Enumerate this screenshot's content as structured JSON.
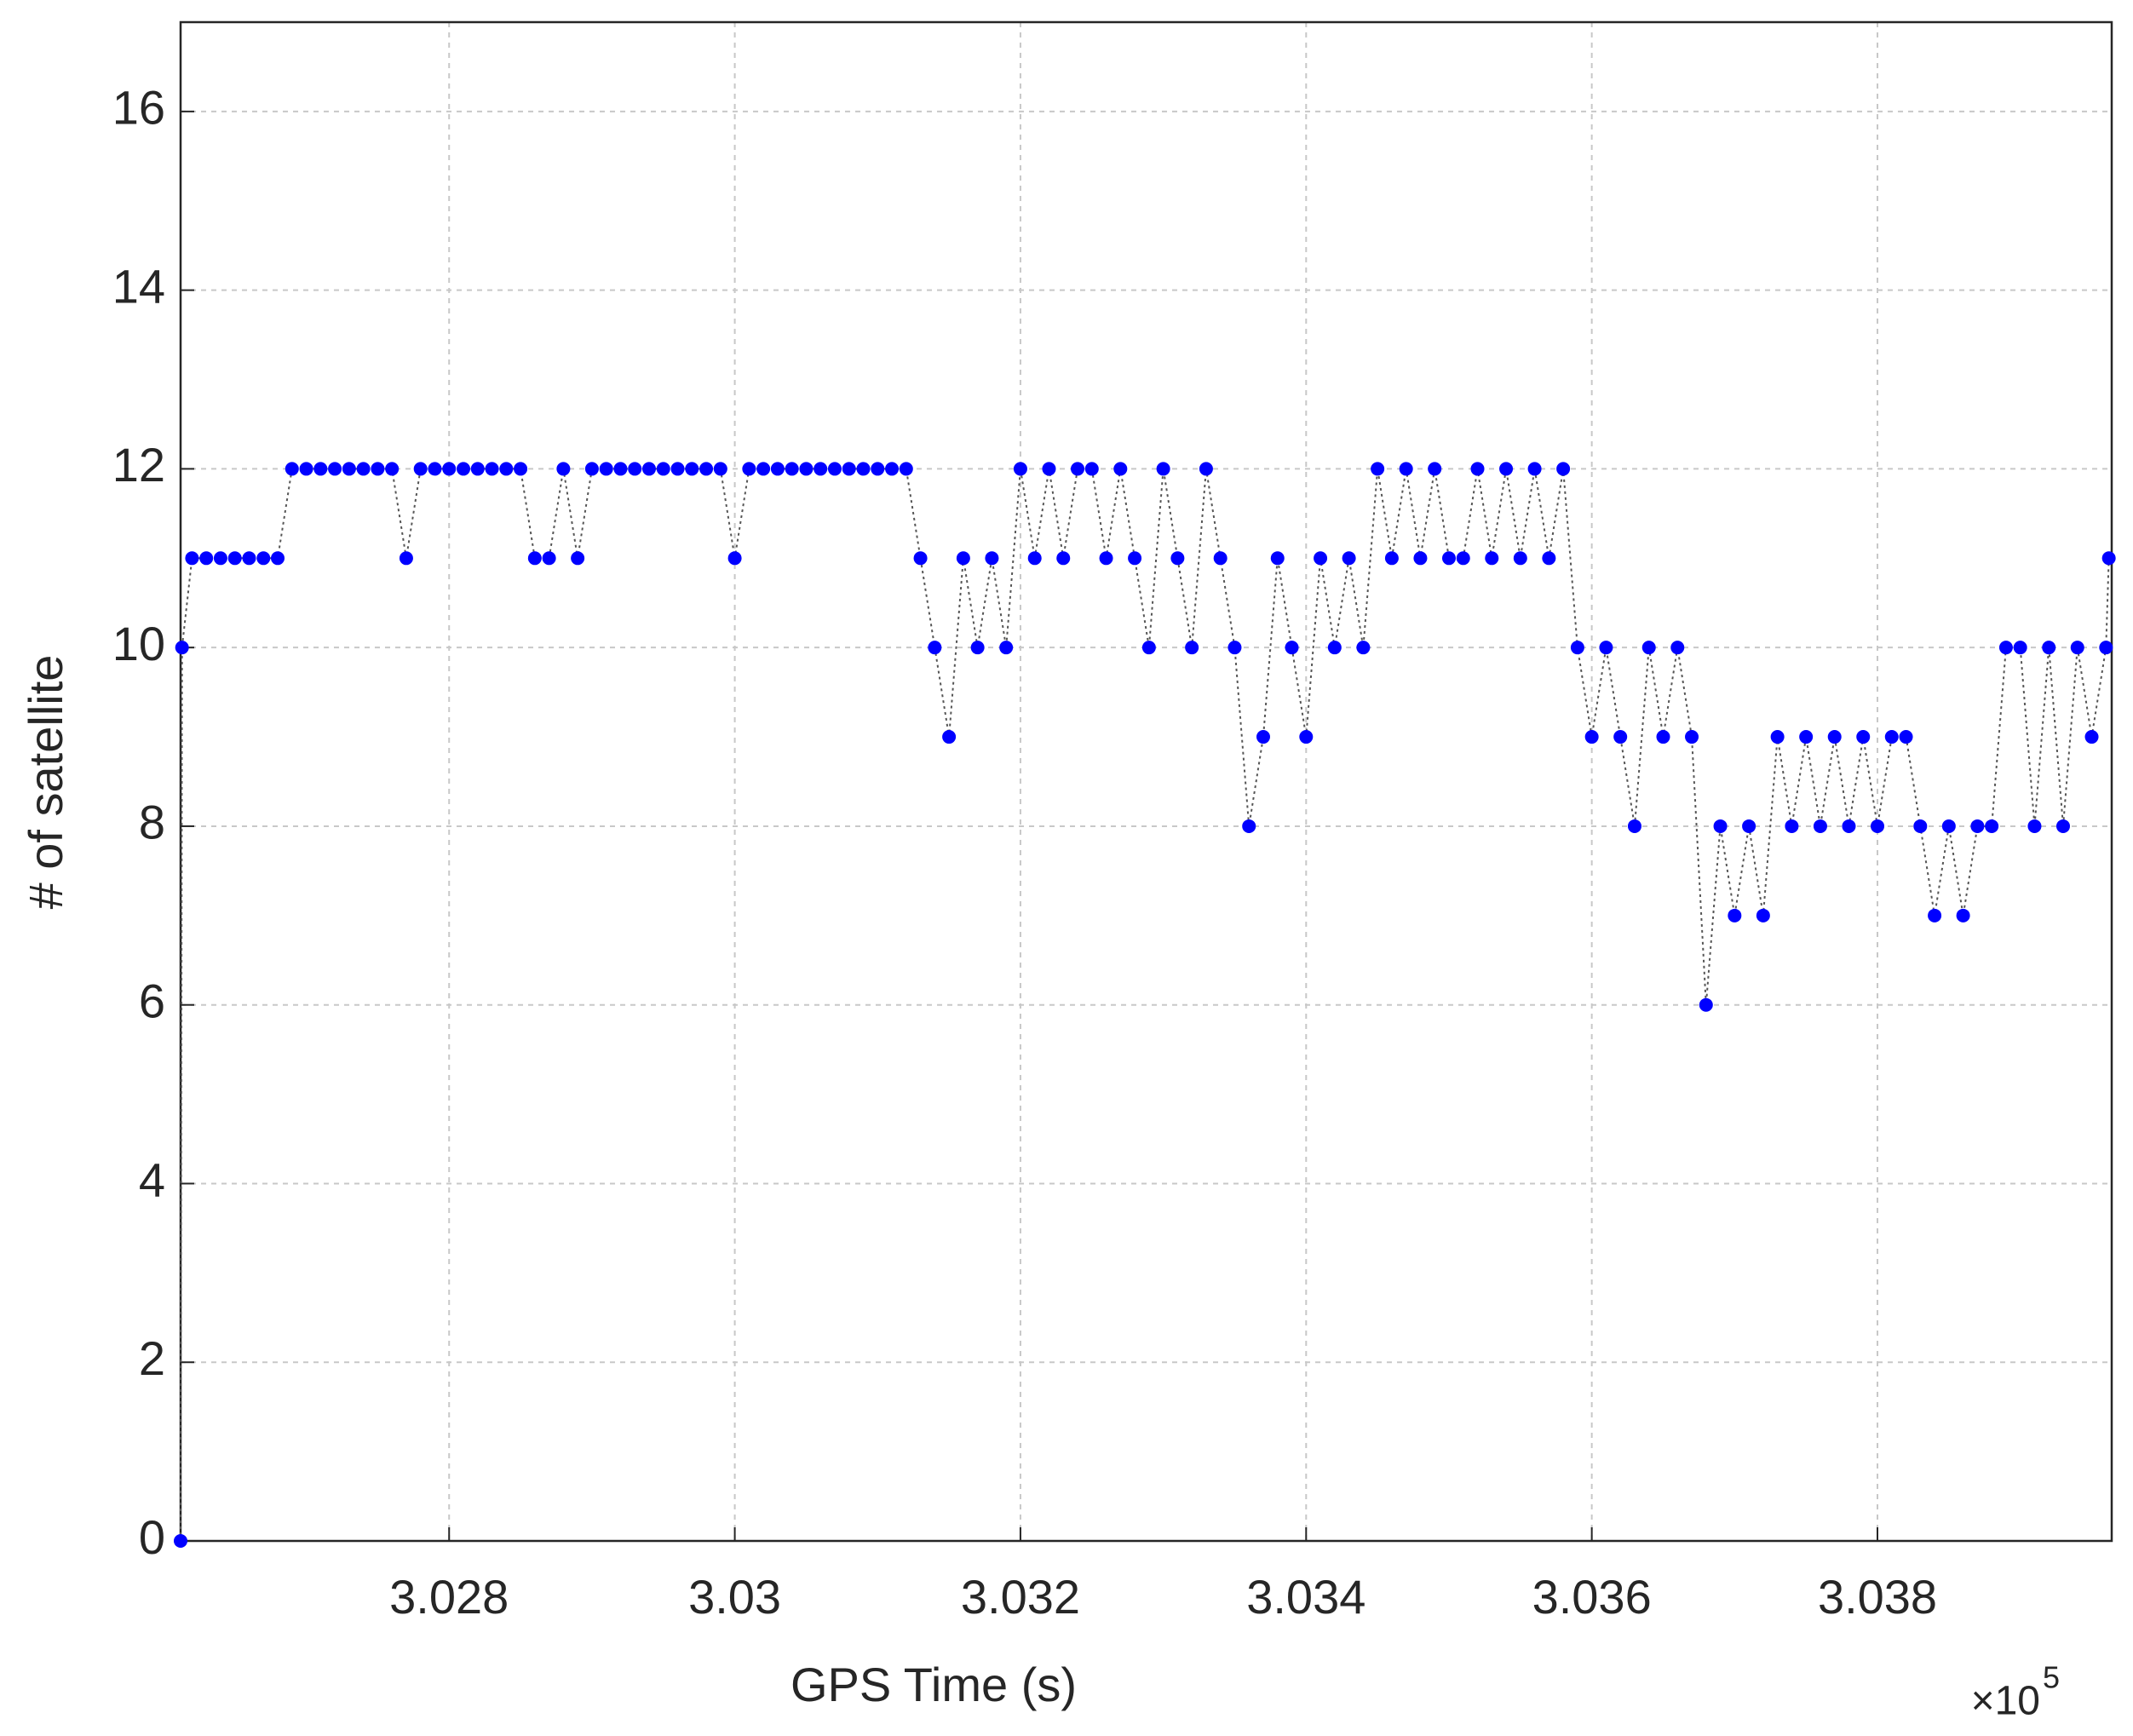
{
  "chart_data": {
    "type": "line",
    "xlabel": "GPS Time (s)",
    "ylabel": "# of satellite",
    "x_multiplier": {
      "base": "×10",
      "exponent": "5"
    },
    "xlim": [
      3.02612,
      3.03964
    ],
    "xticks": [
      3.028,
      3.03,
      3.032,
      3.034,
      3.036,
      3.038
    ],
    "ylim": [
      0,
      17
    ],
    "yticks": [
      0,
      2,
      4,
      6,
      8,
      10,
      12,
      14,
      16
    ],
    "grid": true,
    "x": [
      3.02612,
      3.02613,
      3.0262,
      3.0263,
      3.0264,
      3.0265,
      3.0266,
      3.0267,
      3.0268,
      3.0269,
      3.027,
      3.0271,
      3.0272,
      3.0273,
      3.0274,
      3.0275,
      3.0276,
      3.0277,
      3.0278,
      3.0279,
      3.028,
      3.0281,
      3.0282,
      3.0283,
      3.0284,
      3.0285,
      3.0286,
      3.0287,
      3.0288,
      3.0289,
      3.029,
      3.0291,
      3.0292,
      3.0293,
      3.0294,
      3.0295,
      3.0296,
      3.0297,
      3.0298,
      3.0299,
      3.03,
      3.0301,
      3.0302,
      3.0303,
      3.0304,
      3.0305,
      3.0306,
      3.0307,
      3.0308,
      3.0309,
      3.031,
      3.0311,
      3.0312,
      3.0313,
      3.0314,
      3.0315,
      3.0316,
      3.0317,
      3.0318,
      3.0319,
      3.032,
      3.0321,
      3.0322,
      3.0323,
      3.0324,
      3.0325,
      3.0326,
      3.0327,
      3.0328,
      3.0329,
      3.033,
      3.0331,
      3.0332,
      3.0333,
      3.0334,
      3.0335,
      3.0336,
      3.0337,
      3.0338,
      3.0339,
      3.034,
      3.0341,
      3.0342,
      3.0343,
      3.0344,
      3.0345,
      3.0346,
      3.0347,
      3.0348,
      3.0349,
      3.035,
      3.0351,
      3.0352,
      3.0353,
      3.0354,
      3.0355,
      3.0356,
      3.0357,
      3.0358,
      3.0359,
      3.036,
      3.0361,
      3.0362,
      3.0363,
      3.0364,
      3.0365,
      3.0366,
      3.0367,
      3.0368,
      3.0369,
      3.037,
      3.0371,
      3.0372,
      3.0373,
      3.0374,
      3.0375,
      3.0376,
      3.0377,
      3.0378,
      3.0379,
      3.038,
      3.0381,
      3.0382,
      3.0383,
      3.0384,
      3.0385,
      3.0386,
      3.0387,
      3.0388,
      3.0389,
      3.039,
      3.0391,
      3.0392,
      3.0393,
      3.0394,
      3.0395,
      3.0396,
      3.03962
    ],
    "series": [
      {
        "color": "#0000ff",
        "values": [
          0,
          10,
          11,
          11,
          11,
          11,
          11,
          11,
          11,
          12,
          12,
          12,
          12,
          12,
          12,
          12,
          12,
          11,
          12,
          12,
          12,
          12,
          12,
          12,
          12,
          12,
          11,
          11,
          12,
          11,
          12,
          12,
          12,
          12,
          12,
          12,
          12,
          12,
          12,
          12,
          11,
          12,
          12,
          12,
          12,
          12,
          12,
          12,
          12,
          12,
          12,
          12,
          12,
          11,
          10,
          9,
          11,
          10,
          11,
          10,
          12,
          11,
          12,
          11,
          12,
          12,
          11,
          12,
          11,
          10,
          12,
          11,
          10,
          12,
          11,
          10,
          8,
          9,
          11,
          10,
          9,
          11,
          10,
          11,
          10,
          12,
          11,
          12,
          11,
          12,
          11,
          11,
          12,
          11,
          12,
          11,
          12,
          11,
          12,
          10,
          9,
          10,
          9,
          8,
          10,
          9,
          10,
          9,
          6,
          8,
          7,
          8,
          7,
          9,
          8,
          9,
          8,
          9,
          8,
          9,
          8,
          9,
          9,
          8,
          7,
          8,
          7,
          8,
          8,
          10,
          10,
          8,
          10,
          8,
          10,
          9,
          10,
          11
        ]
      }
    ]
  }
}
